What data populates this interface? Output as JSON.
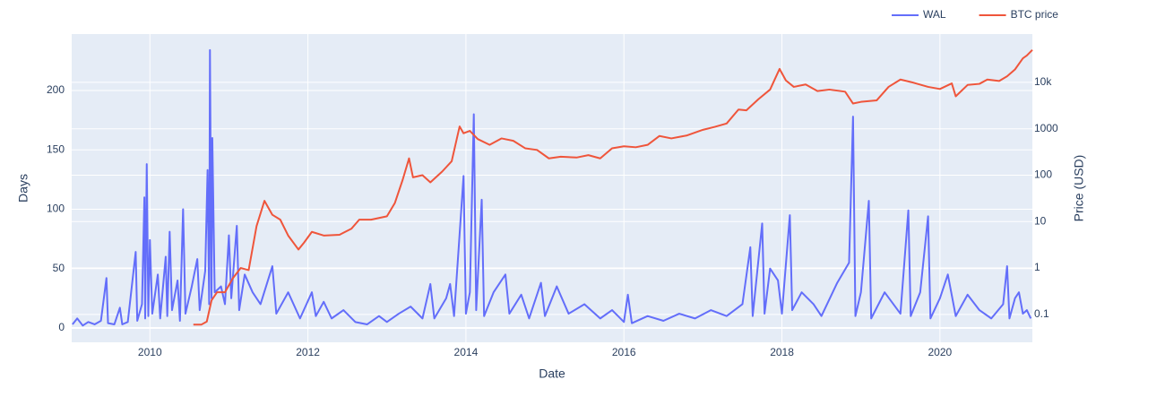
{
  "chart_data": {
    "type": "line",
    "x_label": "Date",
    "y_label": "Days",
    "y2_label": "Price (USD)",
    "xlim": [
      2009.01,
      2021.17
    ],
    "xticks": [
      2010,
      2012,
      2014,
      2016,
      2018,
      2020
    ],
    "ylim": [
      -12.1,
      247.5
    ],
    "yticks": [
      0,
      50,
      100,
      150,
      200
    ],
    "y2lim": [
      0.025,
      110000
    ],
    "y2_log": true,
    "y2ticks": [
      0.1,
      1,
      10,
      100,
      1000,
      {
        "value": 10000,
        "label": "10k"
      }
    ],
    "grid": true,
    "legend": "top-right",
    "series": [
      {
        "name": "WAL",
        "color": "#636efa",
        "x": [
          2009.02,
          2009.08,
          2009.15,
          2009.22,
          2009.3,
          2009.38,
          2009.45,
          2009.47,
          2009.55,
          2009.62,
          2009.65,
          2009.72,
          2009.82,
          2009.84,
          2009.9,
          2009.93,
          2009.94,
          2009.96,
          2009.98,
          2010.0,
          2010.03,
          2010.1,
          2010.13,
          2010.2,
          2010.22,
          2010.25,
          2010.28,
          2010.35,
          2010.38,
          2010.42,
          2010.45,
          2010.53,
          2010.6,
          2010.63,
          2010.7,
          2010.73,
          2010.75,
          2010.76,
          2010.78,
          2010.79,
          2010.82,
          2010.9,
          2010.95,
          2011.0,
          2011.03,
          2011.1,
          2011.13,
          2011.2,
          2011.3,
          2011.4,
          2011.55,
          2011.6,
          2011.75,
          2011.9,
          2012.05,
          2012.1,
          2012.2,
          2012.3,
          2012.45,
          2012.6,
          2012.75,
          2012.9,
          2013.0,
          2013.15,
          2013.3,
          2013.45,
          2013.55,
          2013.6,
          2013.75,
          2013.8,
          2013.85,
          2013.97,
          2014.0,
          2014.05,
          2014.1,
          2014.13,
          2014.2,
          2014.23,
          2014.35,
          2014.5,
          2014.55,
          2014.7,
          2014.8,
          2014.95,
          2015.0,
          2015.15,
          2015.3,
          2015.5,
          2015.7,
          2015.85,
          2016.0,
          2016.05,
          2016.1,
          2016.3,
          2016.5,
          2016.7,
          2016.9,
          2017.1,
          2017.3,
          2017.5,
          2017.6,
          2017.63,
          2017.75,
          2017.78,
          2017.85,
          2017.95,
          2018.0,
          2018.1,
          2018.13,
          2018.25,
          2018.4,
          2018.5,
          2018.7,
          2018.85,
          2018.9,
          2018.93,
          2019.0,
          2019.1,
          2019.13,
          2019.3,
          2019.5,
          2019.6,
          2019.63,
          2019.75,
          2019.85,
          2019.88,
          2020.0,
          2020.1,
          2020.2,
          2020.35,
          2020.5,
          2020.65,
          2020.8,
          2020.85,
          2020.88,
          2020.95,
          2021.0,
          2021.05,
          2021.1,
          2021.15
        ],
        "values": [
          3,
          8,
          2,
          5,
          3,
          6,
          42,
          4,
          3,
          17,
          3,
          5,
          64,
          6,
          20,
          110,
          8,
          138,
          10,
          74,
          12,
          45,
          8,
          60,
          10,
          81,
          15,
          40,
          6,
          100,
          12,
          35,
          58,
          15,
          48,
          133,
          20,
          234,
          25,
          160,
          30,
          35,
          20,
          78,
          25,
          86,
          15,
          45,
          30,
          20,
          52,
          12,
          30,
          8,
          30,
          10,
          22,
          8,
          15,
          5,
          3,
          10,
          5,
          12,
          18,
          8,
          37,
          8,
          25,
          37,
          10,
          128,
          12,
          30,
          180,
          15,
          108,
          10,
          30,
          45,
          12,
          28,
          8,
          38,
          10,
          35,
          12,
          20,
          8,
          15,
          5,
          28,
          4,
          10,
          6,
          12,
          8,
          15,
          10,
          20,
          68,
          10,
          88,
          12,
          50,
          40,
          12,
          95,
          15,
          30,
          20,
          10,
          38,
          55,
          178,
          10,
          30,
          107,
          8,
          30,
          12,
          99,
          10,
          30,
          94,
          8,
          25,
          45,
          10,
          28,
          15,
          8,
          20,
          52,
          8,
          25,
          30,
          12,
          15,
          8
        ]
      },
      {
        "name": "BTC price",
        "color": "#ef553b",
        "axis": "y2",
        "x": [
          2010.55,
          2010.65,
          2010.72,
          2010.78,
          2010.85,
          2010.95,
          2011.05,
          2011.15,
          2011.25,
          2011.35,
          2011.45,
          2011.55,
          2011.65,
          2011.75,
          2011.88,
          2011.95,
          2012.05,
          2012.2,
          2012.4,
          2012.55,
          2012.65,
          2012.8,
          2013.0,
          2013.1,
          2013.2,
          2013.28,
          2013.33,
          2013.45,
          2013.55,
          2013.7,
          2013.82,
          2013.92,
          2013.97,
          2014.05,
          2014.15,
          2014.3,
          2014.45,
          2014.6,
          2014.75,
          2014.9,
          2015.05,
          2015.2,
          2015.4,
          2015.55,
          2015.7,
          2015.85,
          2016.0,
          2016.15,
          2016.3,
          2016.45,
          2016.6,
          2016.8,
          2017.0,
          2017.15,
          2017.3,
          2017.45,
          2017.55,
          2017.7,
          2017.85,
          2017.97,
          2018.05,
          2018.15,
          2018.3,
          2018.45,
          2018.6,
          2018.8,
          2018.9,
          2019.0,
          2019.2,
          2019.35,
          2019.5,
          2019.65,
          2019.85,
          2020.0,
          2020.15,
          2020.2,
          2020.35,
          2020.5,
          2020.6,
          2020.75,
          2020.85,
          2020.95,
          2021.05,
          2021.1,
          2021.17
        ],
        "values": [
          0.06,
          0.06,
          0.07,
          0.2,
          0.3,
          0.3,
          0.6,
          1,
          0.9,
          8,
          28,
          14,
          11,
          5,
          2.5,
          3.5,
          6,
          5,
          5.2,
          7,
          11,
          11,
          13,
          25,
          80,
          230,
          90,
          100,
          70,
          120,
          200,
          1120,
          800,
          900,
          600,
          450,
          620,
          550,
          380,
          350,
          230,
          250,
          240,
          270,
          230,
          380,
          420,
          400,
          450,
          700,
          620,
          720,
          950,
          1100,
          1300,
          2600,
          2500,
          4300,
          7000,
          19500,
          11000,
          8000,
          9000,
          6500,
          7000,
          6300,
          3500,
          3800,
          4100,
          8000,
          11500,
          10000,
          8000,
          7200,
          9500,
          5000,
          8800,
          9300,
          11500,
          10700,
          13500,
          19000,
          33000,
          38000,
          50000
        ]
      }
    ]
  }
}
